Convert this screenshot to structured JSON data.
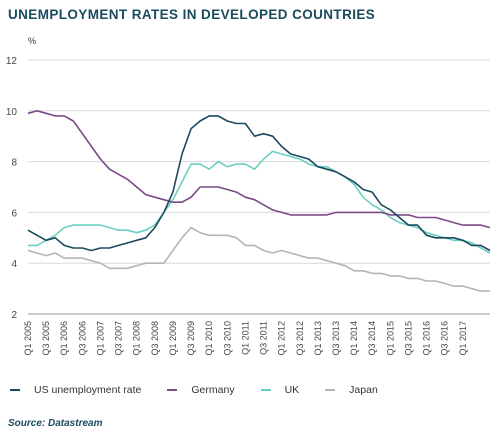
{
  "chart_data": {
    "type": "line",
    "title": "UNEMPLOYMENT RATES IN DEVELOPED COUNTRIES",
    "ylabel": "%",
    "ylim": [
      2,
      12
    ],
    "yticks": [
      2,
      4,
      6,
      8,
      10,
      12
    ],
    "grid": true,
    "legend_position": "bottom",
    "source": "Source: Datastream",
    "x_tick_labels": [
      "Q1 2005",
      "Q3 2005",
      "Q1 2006",
      "Q3 2006",
      "Q1 2007",
      "Q3 2007",
      "Q1 2008",
      "Q3 2008",
      "Q1 2009",
      "Q3 2009",
      "Q1 2010",
      "Q3 2010",
      "Q1 2011",
      "Q3 2011",
      "Q1 2012",
      "Q3 2012",
      "Q1 2013",
      "Q3 2013",
      "Q1 2014",
      "Q3 2014",
      "Q1 2015",
      "Q3 2015",
      "Q1 2016",
      "Q3 2016",
      "Q1 2017"
    ],
    "series": [
      {
        "name": "US unemployment rate",
        "color": "#1a4a5e",
        "values": [
          5.3,
          5.1,
          4.9,
          5.0,
          4.7,
          4.6,
          4.6,
          4.5,
          4.6,
          4.6,
          4.7,
          4.8,
          4.9,
          5.0,
          5.4,
          6.0,
          6.8,
          8.3,
          9.3,
          9.6,
          9.8,
          9.8,
          9.6,
          9.5,
          9.5,
          9.0,
          9.1,
          9.0,
          8.6,
          8.3,
          8.2,
          8.1,
          7.8,
          7.7,
          7.6,
          7.4,
          7.2,
          6.9,
          6.8,
          6.3,
          6.1,
          5.8,
          5.5,
          5.5,
          5.1,
          5.0,
          5.0,
          5.0,
          4.9,
          4.7,
          4.7,
          4.5
        ]
      },
      {
        "name": "Germany",
        "color": "#7a4a86",
        "values": [
          9.9,
          10.0,
          9.9,
          9.8,
          9.8,
          9.6,
          9.1,
          8.6,
          8.1,
          7.7,
          7.5,
          7.3,
          7.0,
          6.7,
          6.6,
          6.5,
          6.4,
          6.4,
          6.6,
          7.0,
          7.0,
          7.0,
          6.9,
          6.8,
          6.6,
          6.5,
          6.3,
          6.1,
          6.0,
          5.9,
          5.9,
          5.9,
          5.9,
          5.9,
          6.0,
          6.0,
          6.0,
          6.0,
          6.0,
          6.0,
          5.9,
          5.9,
          5.9,
          5.8,
          5.8,
          5.8,
          5.7,
          5.6,
          5.5,
          5.5,
          5.5,
          5.4
        ]
      },
      {
        "name": "UK",
        "color": "#6ccfbf",
        "values": [
          4.7,
          4.7,
          4.9,
          5.1,
          5.4,
          5.5,
          5.5,
          5.5,
          5.5,
          5.4,
          5.3,
          5.3,
          5.2,
          5.3,
          5.5,
          6.0,
          6.5,
          7.2,
          7.9,
          7.9,
          7.7,
          8.0,
          7.8,
          7.9,
          7.9,
          7.7,
          8.1,
          8.4,
          8.3,
          8.2,
          8.1,
          7.9,
          7.8,
          7.8,
          7.6,
          7.4,
          7.1,
          6.6,
          6.3,
          6.1,
          5.8,
          5.6,
          5.5,
          5.4,
          5.2,
          5.1,
          5.0,
          4.9,
          4.9,
          4.8,
          4.6,
          4.4
        ]
      },
      {
        "name": "Japan",
        "color": "#b5b5b5",
        "values": [
          4.5,
          4.4,
          4.3,
          4.4,
          4.2,
          4.2,
          4.2,
          4.1,
          4.0,
          3.8,
          3.8,
          3.8,
          3.9,
          4.0,
          4.0,
          4.0,
          4.5,
          5.0,
          5.4,
          5.2,
          5.1,
          5.1,
          5.1,
          5.0,
          4.7,
          4.7,
          4.5,
          4.4,
          4.5,
          4.4,
          4.3,
          4.2,
          4.2,
          4.1,
          4.0,
          3.9,
          3.7,
          3.7,
          3.6,
          3.6,
          3.5,
          3.5,
          3.4,
          3.4,
          3.3,
          3.3,
          3.2,
          3.1,
          3.1,
          3.0,
          2.9,
          2.9
        ]
      }
    ]
  }
}
